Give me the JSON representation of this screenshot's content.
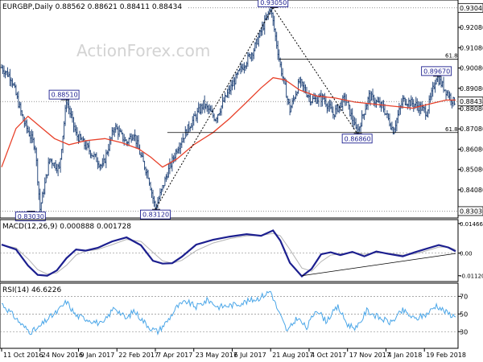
{
  "chart_data": [
    {
      "type": "line",
      "variant": "ohlc",
      "title": "EURGBP,Daily  0.88562 0.88621 0.88411 0.88434",
      "watermark": "ActionForex.com",
      "ylim": [
        0.8273,
        0.9339
      ],
      "y_ticks": [
        0.9208,
        0.9108,
        0.9008,
        0.8908,
        0.8808,
        0.8708,
        0.8608,
        0.8508,
        0.8408
      ],
      "y_tick_labels": [
        "0.92080",
        "0.91080",
        "0.90080",
        "0.89080",
        "0.88080",
        "0.87080",
        "0.86080",
        "0.85080",
        "0.84080"
      ],
      "x_labels": [
        "11 Oct 2016",
        "24 Nov 2016",
        "9 Jan 2017",
        "22 Feb 2017",
        "7 Apr 2017",
        "23 May 2017",
        "6 Jul 2017",
        "21 Aug 2017",
        "4 Oct 2017",
        "17 Nov 2017",
        "4 Jan 2018",
        "19 Feb 2018"
      ],
      "x_label_positions": [
        0,
        32,
        64,
        96,
        128,
        160,
        192,
        224,
        256,
        288,
        320,
        352
      ],
      "bars": 378,
      "price_path": [
        [
          0,
          0.901
        ],
        [
          8,
          0.896
        ],
        [
          18,
          0.875
        ],
        [
          28,
          0.862
        ],
        [
          32,
          0.8313
        ],
        [
          40,
          0.856
        ],
        [
          48,
          0.851
        ],
        [
          54,
          0.8851
        ],
        [
          62,
          0.868
        ],
        [
          72,
          0.861
        ],
        [
          84,
          0.852
        ],
        [
          94,
          0.872
        ],
        [
          104,
          0.864
        ],
        [
          110,
          0.869
        ],
        [
          116,
          0.857
        ],
        [
          122,
          0.848
        ],
        [
          128,
          0.8312
        ],
        [
          138,
          0.849
        ],
        [
          146,
          0.861
        ],
        [
          156,
          0.872
        ],
        [
          168,
          0.883
        ],
        [
          178,
          0.876
        ],
        [
          188,
          0.888
        ],
        [
          198,
          0.899
        ],
        [
          210,
          0.91
        ],
        [
          224,
          0.9305
        ],
        [
          232,
          0.902
        ],
        [
          240,
          0.88
        ],
        [
          248,
          0.894
        ],
        [
          258,
          0.885
        ],
        [
          268,
          0.886
        ],
        [
          276,
          0.878
        ],
        [
          286,
          0.886
        ],
        [
          296,
          0.8686
        ],
        [
          306,
          0.887
        ],
        [
          318,
          0.881
        ],
        [
          326,
          0.87
        ],
        [
          334,
          0.885
        ],
        [
          344,
          0.883
        ],
        [
          354,
          0.879
        ],
        [
          362,
          0.8967
        ],
        [
          370,
          0.8895
        ],
        [
          376,
          0.8843
        ]
      ],
      "moving_average": [
        [
          0,
          0.852
        ],
        [
          12,
          0.871
        ],
        [
          22,
          0.877
        ],
        [
          32,
          0.872
        ],
        [
          44,
          0.866
        ],
        [
          56,
          0.863
        ],
        [
          70,
          0.865
        ],
        [
          86,
          0.866
        ],
        [
          100,
          0.864
        ],
        [
          114,
          0.861
        ],
        [
          124,
          0.857
        ],
        [
          134,
          0.852
        ],
        [
          146,
          0.856
        ],
        [
          160,
          0.863
        ],
        [
          176,
          0.869
        ],
        [
          190,
          0.876
        ],
        [
          204,
          0.884
        ],
        [
          216,
          0.891
        ],
        [
          226,
          0.896
        ],
        [
          236,
          0.895
        ],
        [
          248,
          0.89
        ],
        [
          262,
          0.887
        ],
        [
          278,
          0.886
        ],
        [
          294,
          0.884
        ],
        [
          310,
          0.883
        ],
        [
          326,
          0.882
        ],
        [
          342,
          0.881
        ],
        [
          356,
          0.883
        ],
        [
          370,
          0.885
        ],
        [
          378,
          0.885
        ]
      ],
      "moving_average_color": "#e8412a",
      "bar_color": "#2b4c7e",
      "horizontal_levels": [
        {
          "label": "0.93040",
          "value": 0.9304,
          "boxed": true
        },
        {
          "label": "0.88434",
          "value": 0.8843,
          "boxed": true
        },
        {
          "label": "0.83030",
          "value": 0.8303,
          "boxed": true
        },
        {
          "label": "61.8",
          "value": 0.9051
        },
        {
          "label": "61.8",
          "value": 0.869
        }
      ],
      "annotations": [
        {
          "label": "0.93050",
          "x": 226,
          "value": 0.9305
        },
        {
          "label": "0.88510",
          "x": 52,
          "value": 0.8851
        },
        {
          "label": "0.83030",
          "x": 24,
          "value": 0.8303
        },
        {
          "label": "0.83120",
          "x": 128,
          "value": 0.8312
        },
        {
          "label": "0.86860",
          "x": 296,
          "value": 0.8686
        },
        {
          "label": "0.89670",
          "x": 362,
          "value": 0.8967
        }
      ],
      "trendlines": [
        {
          "from": [
            128,
            0.8312
          ],
          "to": [
            226,
            0.9305
          ]
        },
        {
          "from": [
            226,
            0.9305
          ],
          "to": [
            296,
            0.8686
          ]
        }
      ]
    },
    {
      "type": "line",
      "title": "MACD(12,26,9) 0.000888 0.001728",
      "ylim": [
        -0.0137,
        0.0162
      ],
      "y_ticks": [
        0.014665,
        0.0,
        -0.011202
      ],
      "y_tick_labels": [
        "0.014665",
        "0.00",
        "-0.011202"
      ],
      "macd": [
        [
          0,
          0.0042
        ],
        [
          12,
          0.0018
        ],
        [
          22,
          -0.0062
        ],
        [
          30,
          -0.0108
        ],
        [
          38,
          -0.0112
        ],
        [
          46,
          -0.0086
        ],
        [
          54,
          -0.0025
        ],
        [
          62,
          0.0018
        ],
        [
          70,
          0.0012
        ],
        [
          80,
          0.0026
        ],
        [
          92,
          0.0058
        ],
        [
          104,
          0.0078
        ],
        [
          116,
          0.0039
        ],
        [
          126,
          -0.0038
        ],
        [
          134,
          -0.0052
        ],
        [
          142,
          -0.005
        ],
        [
          150,
          -0.0018
        ],
        [
          162,
          0.0042
        ],
        [
          176,
          0.0066
        ],
        [
          190,
          0.0082
        ],
        [
          204,
          0.0094
        ],
        [
          216,
          0.0086
        ],
        [
          226,
          0.0112
        ],
        [
          232,
          0.0062
        ],
        [
          240,
          -0.0048
        ],
        [
          250,
          -0.0115
        ],
        [
          258,
          -0.0078
        ],
        [
          266,
          -0.0006
        ],
        [
          274,
          0.0004
        ],
        [
          282,
          -0.001
        ],
        [
          292,
          0.0006
        ],
        [
          302,
          -0.0016
        ],
        [
          312,
          0.0008
        ],
        [
          322,
          -0.0004
        ],
        [
          334,
          -0.0016
        ],
        [
          344,
          0.0004
        ],
        [
          354,
          0.0022
        ],
        [
          364,
          0.004
        ],
        [
          372,
          0.0028
        ],
        [
          378,
          0.0009
        ]
      ],
      "signal": [
        [
          0,
          0.004
        ],
        [
          12,
          0.0026
        ],
        [
          22,
          -0.0028
        ],
        [
          30,
          -0.0082
        ],
        [
          38,
          -0.0104
        ],
        [
          46,
          -0.0098
        ],
        [
          54,
          -0.006
        ],
        [
          62,
          -0.001
        ],
        [
          70,
          0.001
        ],
        [
          80,
          0.0018
        ],
        [
          92,
          0.0042
        ],
        [
          104,
          0.0068
        ],
        [
          116,
          0.0058
        ],
        [
          126,
          0.0004
        ],
        [
          134,
          -0.0038
        ],
        [
          142,
          -0.005
        ],
        [
          150,
          -0.0036
        ],
        [
          162,
          0.0012
        ],
        [
          176,
          0.005
        ],
        [
          190,
          0.0072
        ],
        [
          204,
          0.0086
        ],
        [
          216,
          0.0088
        ],
        [
          226,
          0.0098
        ],
        [
          232,
          0.0086
        ],
        [
          240,
          0.0018
        ],
        [
          250,
          -0.0074
        ],
        [
          258,
          -0.009
        ],
        [
          266,
          -0.0042
        ],
        [
          274,
          -0.001
        ],
        [
          282,
          -0.0004
        ],
        [
          292,
          0.0002
        ],
        [
          302,
          -0.0006
        ],
        [
          312,
          0.0002
        ],
        [
          322,
          0.0
        ],
        [
          334,
          -0.001
        ],
        [
          344,
          -0.0004
        ],
        [
          354,
          0.0012
        ],
        [
          364,
          0.003
        ],
        [
          372,
          0.003
        ],
        [
          378,
          0.0017
        ]
      ],
      "macd_color": "#1c1f8f",
      "signal_color": "#b4b4b4",
      "trendline": {
        "from": [
          250,
          -0.0112
        ],
        "to": [
          378,
          -0.0002
        ]
      }
    },
    {
      "type": "line",
      "title": "RSI(14) 46.6226",
      "ylim": [
        12,
        84
      ],
      "y_ticks": [
        70,
        50,
        30
      ],
      "y_tick_labels": [
        "70",
        "50",
        "30"
      ],
      "rsi": [
        [
          0,
          62
        ],
        [
          10,
          48
        ],
        [
          18,
          36
        ],
        [
          24,
          30
        ],
        [
          30,
          33
        ],
        [
          38,
          44
        ],
        [
          46,
          52
        ],
        [
          54,
          64
        ],
        [
          62,
          48
        ],
        [
          72,
          44
        ],
        [
          84,
          38
        ],
        [
          94,
          58
        ],
        [
          104,
          44
        ],
        [
          110,
          54
        ],
        [
          118,
          42
        ],
        [
          124,
          34
        ],
        [
          130,
          30
        ],
        [
          138,
          42
        ],
        [
          146,
          58
        ],
        [
          154,
          64
        ],
        [
          162,
          58
        ],
        [
          172,
          66
        ],
        [
          180,
          58
        ],
        [
          192,
          60
        ],
        [
          204,
          64
        ],
        [
          214,
          68
        ],
        [
          224,
          76
        ],
        [
          230,
          54
        ],
        [
          238,
          30
        ],
        [
          246,
          46
        ],
        [
          254,
          34
        ],
        [
          262,
          56
        ],
        [
          270,
          42
        ],
        [
          280,
          58
        ],
        [
          288,
          38
        ],
        [
          296,
          34
        ],
        [
          304,
          54
        ],
        [
          314,
          46
        ],
        [
          324,
          40
        ],
        [
          334,
          54
        ],
        [
          344,
          44
        ],
        [
          354,
          50
        ],
        [
          362,
          60
        ],
        [
          370,
          52
        ],
        [
          378,
          46.6
        ]
      ],
      "rsi_color": "#4aa6e8"
    }
  ]
}
